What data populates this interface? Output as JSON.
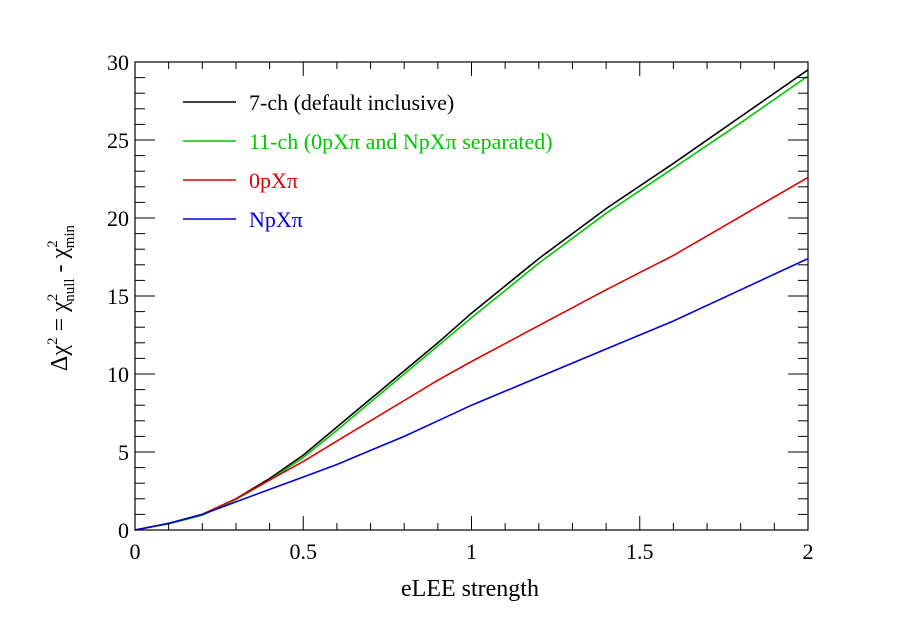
{
  "chart_data": {
    "type": "line",
    "xlabel": "eLEE strength",
    "ylabel": {
      "prefix": "Δχ",
      "prefix_sup": "2",
      "eq": " = χ",
      "null_sub": "null",
      "null_sup": "2",
      "minus": " - χ",
      "min_sub": "min",
      "min_sup": "2"
    },
    "xlim": [
      0,
      2
    ],
    "ylim": [
      0,
      30
    ],
    "x_ticks": [
      0,
      0.5,
      1,
      1.5,
      2
    ],
    "x_tick_labels": [
      "0",
      "0.5",
      "1",
      "1.5",
      "2"
    ],
    "y_ticks": [
      0,
      5,
      10,
      15,
      20,
      25,
      30
    ],
    "y_tick_labels": [
      "0",
      "5",
      "10",
      "15",
      "20",
      "25",
      "30"
    ],
    "legend_position": "top-left",
    "grid": false,
    "x": [
      0,
      0.1,
      0.2,
      0.3,
      0.4,
      0.5,
      0.6,
      0.7,
      0.8,
      0.9,
      1.0,
      1.2,
      1.4,
      1.6,
      1.8,
      2.0
    ],
    "series": [
      {
        "name": "7-ch (default inclusive)",
        "color": "#000000",
        "values": [
          0,
          0.42,
          1.0,
          2.0,
          3.3,
          4.8,
          6.6,
          8.4,
          10.2,
          12.0,
          13.9,
          17.4,
          20.6,
          23.5,
          26.5,
          29.5
        ]
      },
      {
        "name": "11-ch (0pXπ and NpXπ separated)",
        "color": "#00c800",
        "values": [
          0,
          0.4,
          0.95,
          1.95,
          3.2,
          4.65,
          6.4,
          8.2,
          10.0,
          11.8,
          13.6,
          17.1,
          20.3,
          23.2,
          26.1,
          29.1
        ]
      },
      {
        "name": "0pXπ",
        "color": "#e00000",
        "values": [
          0,
          0.42,
          1.0,
          2.0,
          3.2,
          4.4,
          5.7,
          7.0,
          8.3,
          9.6,
          10.8,
          13.1,
          15.4,
          17.6,
          20.1,
          22.6
        ]
      },
      {
        "name": "NpXπ",
        "color": "#0000dd",
        "values": [
          0,
          0.42,
          1.0,
          1.8,
          2.6,
          3.4,
          4.2,
          5.1,
          6.0,
          7.0,
          8.0,
          9.8,
          11.6,
          13.4,
          15.4,
          17.4
        ]
      }
    ]
  }
}
